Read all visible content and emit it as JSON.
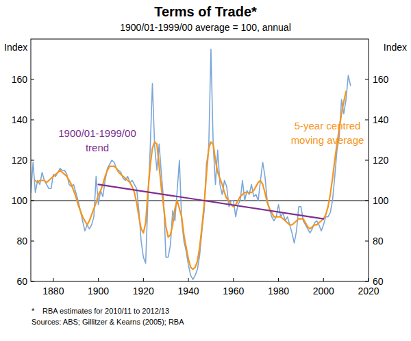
{
  "chart_data": {
    "type": "line",
    "title": "Terms of Trade*",
    "subtitle": "1900/01-1999/00 average = 100, annual",
    "ylabel": "Index",
    "xlim": [
      1870,
      2020
    ],
    "xticks": [
      1880,
      1900,
      1920,
      1940,
      1960,
      1980,
      2000,
      2020
    ],
    "ylim": [
      60,
      180
    ],
    "yticks": [
      60,
      80,
      100,
      120,
      140,
      160
    ],
    "grid": false,
    "reference_line": 100,
    "series": [
      {
        "type": "line",
        "color": "#7ba7d9",
        "x": [
          1870,
          1871,
          1872,
          1873,
          1874,
          1875,
          1876,
          1877,
          1878,
          1879,
          1880,
          1881,
          1882,
          1883,
          1884,
          1885,
          1886,
          1887,
          1888,
          1889,
          1890,
          1891,
          1892,
          1893,
          1894,
          1895,
          1896,
          1897,
          1898,
          1899,
          1900,
          1901,
          1902,
          1903,
          1904,
          1905,
          1906,
          1907,
          1908,
          1909,
          1910,
          1911,
          1912,
          1913,
          1914,
          1915,
          1916,
          1917,
          1918,
          1919,
          1920,
          1921,
          1922,
          1923,
          1924,
          1925,
          1926,
          1927,
          1928,
          1929,
          1930,
          1931,
          1932,
          1933,
          1934,
          1935,
          1936,
          1937,
          1938,
          1939,
          1940,
          1941,
          1942,
          1943,
          1944,
          1945,
          1946,
          1947,
          1948,
          1949,
          1950,
          1951,
          1952,
          1953,
          1954,
          1955,
          1956,
          1957,
          1958,
          1959,
          1960,
          1961,
          1962,
          1963,
          1964,
          1965,
          1966,
          1967,
          1968,
          1969,
          1970,
          1971,
          1972,
          1973,
          1974,
          1975,
          1976,
          1977,
          1978,
          1979,
          1980,
          1981,
          1982,
          1983,
          1984,
          1985,
          1986,
          1987,
          1988,
          1989,
          1990,
          1991,
          1992,
          1993,
          1994,
          1995,
          1996,
          1997,
          1998,
          1999,
          2000,
          2001,
          2002,
          2003,
          2004,
          2005,
          2006,
          2007,
          2008,
          2009,
          2010,
          2011,
          2012
        ],
        "values": [
          104,
          119,
          104,
          110,
          108,
          114,
          110,
          108,
          106,
          106,
          113,
          112,
          114,
          116,
          115,
          115,
          113,
          108,
          107,
          108,
          104,
          100,
          95,
          90,
          85,
          88,
          86,
          88,
          92,
          112,
          98,
          105,
          102,
          110,
          116,
          118,
          120,
          119,
          116,
          115,
          114,
          111,
          110,
          112,
          109,
          110,
          108,
          106,
          95,
          80,
          72,
          69,
          100,
          125,
          158,
          127,
          115,
          128,
          113,
          100,
          72,
          72,
          78,
          95,
          90,
          105,
          120,
          90,
          80,
          75,
          68,
          63,
          61,
          63,
          66,
          73,
          85,
          95,
          118,
          125,
          175,
          128,
          108,
          125,
          108,
          103,
          110,
          107,
          97,
          100,
          100,
          92,
          98,
          100,
          110,
          100,
          105,
          103,
          108,
          102,
          103,
          100,
          110,
          119,
          112,
          100,
          96,
          92,
          90,
          92,
          98,
          92,
          94,
          90,
          92,
          88,
          84,
          79,
          85,
          97,
          97,
          90,
          88,
          86,
          84,
          86,
          89,
          90,
          88,
          85,
          88,
          92,
          92,
          94,
          100,
          112,
          125,
          132,
          150,
          143,
          150,
          162,
          157
        ]
      },
      {
        "type": "line",
        "color": "#f7941d",
        "x": [
          1872,
          1873,
          1874,
          1875,
          1876,
          1877,
          1878,
          1879,
          1880,
          1881,
          1882,
          1883,
          1884,
          1885,
          1886,
          1887,
          1888,
          1889,
          1890,
          1891,
          1892,
          1893,
          1894,
          1895,
          1896,
          1897,
          1898,
          1899,
          1900,
          1901,
          1902,
          1903,
          1904,
          1905,
          1906,
          1907,
          1908,
          1909,
          1910,
          1911,
          1912,
          1913,
          1914,
          1915,
          1916,
          1917,
          1918,
          1919,
          1920,
          1921,
          1922,
          1923,
          1924,
          1925,
          1926,
          1927,
          1928,
          1929,
          1930,
          1931,
          1932,
          1933,
          1934,
          1935,
          1936,
          1937,
          1938,
          1939,
          1940,
          1941,
          1942,
          1943,
          1944,
          1945,
          1946,
          1947,
          1948,
          1949,
          1950,
          1951,
          1952,
          1953,
          1954,
          1955,
          1956,
          1957,
          1958,
          1959,
          1960,
          1961,
          1962,
          1963,
          1964,
          1965,
          1966,
          1967,
          1968,
          1969,
          1970,
          1971,
          1972,
          1973,
          1974,
          1975,
          1976,
          1977,
          1978,
          1979,
          1980,
          1981,
          1982,
          1983,
          1984,
          1985,
          1986,
          1987,
          1988,
          1989,
          1990,
          1991,
          1992,
          1993,
          1994,
          1995,
          1996,
          1997,
          1998,
          1999,
          2000,
          2001,
          2002,
          2003,
          2004,
          2005,
          2006,
          2007,
          2008,
          2009,
          2010
        ],
        "values": [
          110,
          109,
          110,
          110,
          110,
          109,
          110,
          111,
          112,
          113,
          114,
          115,
          114,
          113,
          112,
          110,
          108,
          105,
          102,
          98,
          95,
          92,
          90,
          88,
          90,
          93,
          96,
          99,
          103,
          105,
          108,
          112,
          115,
          117,
          117,
          117,
          116,
          114,
          113,
          112,
          111,
          110,
          109,
          107,
          104,
          99,
          92,
          86,
          84,
          89,
          104,
          117,
          126,
          129,
          128,
          117,
          106,
          97,
          87,
          82,
          83,
          88,
          96,
          100,
          96,
          92,
          83,
          77,
          71,
          67,
          66,
          67,
          70,
          77,
          87,
          98,
          113,
          126,
          129,
          128,
          120,
          114,
          111,
          108,
          104,
          101,
          100,
          98,
          97,
          98,
          100,
          102,
          103,
          104,
          104,
          104,
          104,
          105,
          107,
          109,
          110,
          108,
          104,
          99,
          96,
          94,
          92,
          92,
          92,
          92,
          91,
          90,
          89,
          88,
          88,
          89,
          90,
          91,
          91,
          91,
          89,
          87,
          86,
          87,
          88,
          88,
          89,
          90,
          91,
          93,
          97,
          103,
          111,
          120,
          128,
          136,
          143,
          149,
          154
        ]
      },
      {
        "type": "line",
        "color": "#7d2e8f",
        "x": [
          1900,
          2000
        ],
        "values": [
          108,
          91
        ]
      }
    ],
    "annotations": [
      {
        "lines": [
          "1900/01-1999/00",
          "trend"
        ],
        "color": "#7d2e8f"
      },
      {
        "lines": [
          "5-year centred",
          "moving average"
        ],
        "color": "#f7941d"
      }
    ],
    "notes": [
      {
        "marker": "*",
        "text": "RBA estimates for 2010/11 to 2012/13"
      }
    ],
    "source": "Sources: ABS; Gillitzer & Kearns (2005); RBA"
  }
}
